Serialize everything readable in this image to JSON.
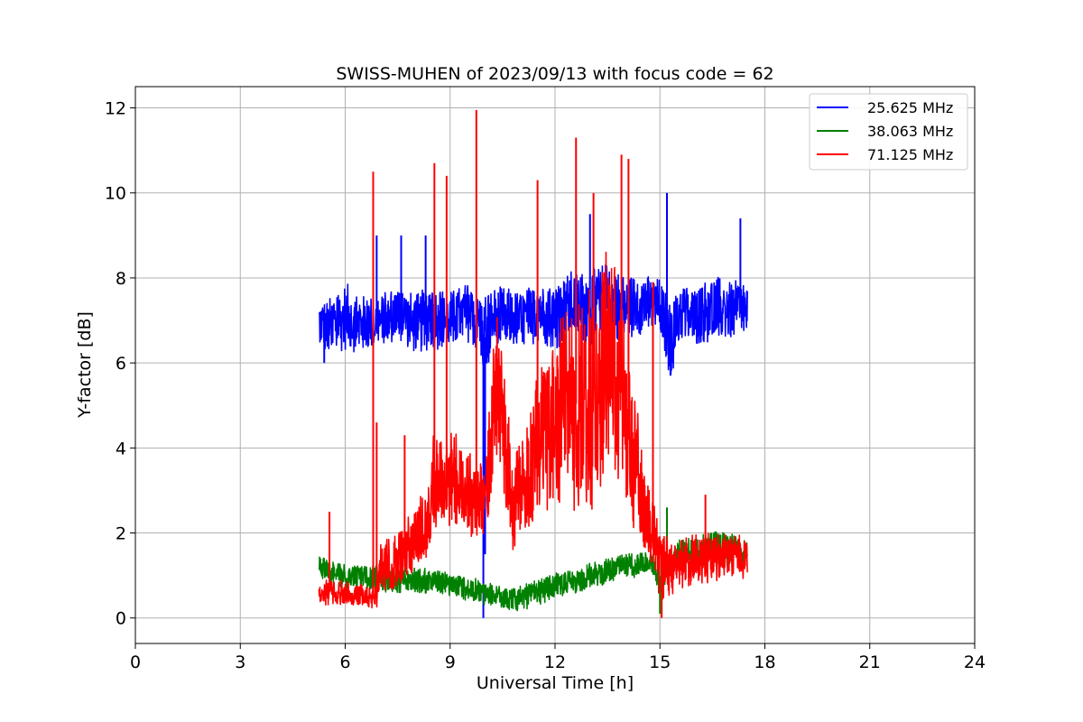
{
  "chart_data": {
    "type": "line",
    "title": "SWISS-MUHEN of 2023/09/13 with focus code = 62",
    "xlabel": "Universal Time [h]",
    "ylabel": "Y-factor [dB]",
    "xlim": [
      0,
      24
    ],
    "ylim": [
      -0.6,
      12.5
    ],
    "xticks": [
      0,
      3,
      6,
      9,
      12,
      15,
      18,
      21,
      24
    ],
    "yticks": [
      0,
      2,
      4,
      6,
      8,
      10,
      12
    ],
    "grid": true,
    "legend_position": "top-right",
    "series": [
      {
        "name": "25.625 MHz",
        "color": "#0000ff",
        "x": [
          5.25,
          5.5,
          6.0,
          6.5,
          7.0,
          7.5,
          8.0,
          8.5,
          9.0,
          9.5,
          9.8,
          10.0,
          10.2,
          10.5,
          11.0,
          11.5,
          12.0,
          12.5,
          13.0,
          13.5,
          14.0,
          14.5,
          15.0,
          15.3,
          15.6,
          16.0,
          16.5,
          17.0,
          17.5
        ],
        "y": [
          7.0,
          6.8,
          7.1,
          6.9,
          7.0,
          7.2,
          6.9,
          7.1,
          7.0,
          7.2,
          6.9,
          6.6,
          7.0,
          7.1,
          7.0,
          7.2,
          7.1,
          7.4,
          7.3,
          7.5,
          7.3,
          7.4,
          7.3,
          6.5,
          7.2,
          7.1,
          7.3,
          7.2,
          7.3
        ],
        "amplitude": [
          0.6,
          0.7,
          0.8,
          0.7,
          0.6,
          0.7,
          0.7,
          0.8,
          0.7,
          0.7,
          0.7,
          1.2,
          0.8,
          0.7,
          0.7,
          0.7,
          0.8,
          0.8,
          0.9,
          0.9,
          0.8,
          0.7,
          0.7,
          0.9,
          0.7,
          0.7,
          0.8,
          0.7,
          0.7
        ],
        "spikes": [
          [
            5.4,
            6.0
          ],
          [
            6.9,
            9.0
          ],
          [
            9.95,
            0.0
          ],
          [
            10.0,
            1.5
          ],
          [
            13.0,
            9.5
          ],
          [
            15.2,
            10.0
          ],
          [
            15.3,
            5.7
          ],
          [
            17.3,
            9.4
          ],
          [
            7.6,
            9.0
          ],
          [
            8.3,
            9.0
          ]
        ]
      },
      {
        "name": "38.063 MHz",
        "color": "#008000",
        "x": [
          5.25,
          5.5,
          6.0,
          6.5,
          7.0,
          7.5,
          8.0,
          8.5,
          9.0,
          9.5,
          10.0,
          10.5,
          11.0,
          11.5,
          12.0,
          12.5,
          13.0,
          13.5,
          14.0,
          14.5,
          14.75,
          15.0,
          15.3,
          15.6,
          16.0,
          16.5,
          17.0,
          17.5
        ],
        "y": [
          1.3,
          1.1,
          1.0,
          1.0,
          0.9,
          0.9,
          0.9,
          0.85,
          0.8,
          0.7,
          0.55,
          0.5,
          0.45,
          0.6,
          0.75,
          0.85,
          1.0,
          1.1,
          1.2,
          1.3,
          1.4,
          0.9,
          1.3,
          1.5,
          1.5,
          1.7,
          1.6,
          1.5
        ],
        "amplitude": [
          0.3,
          0.3,
          0.3,
          0.3,
          0.3,
          0.3,
          0.3,
          0.3,
          0.3,
          0.3,
          0.3,
          0.3,
          0.3,
          0.3,
          0.3,
          0.3,
          0.3,
          0.3,
          0.3,
          0.3,
          0.3,
          0.4,
          0.3,
          0.4,
          0.4,
          0.4,
          0.4,
          0.3
        ],
        "spikes": [
          [
            15.2,
            2.6
          ],
          [
            15.0,
            0.1
          ]
        ]
      },
      {
        "name": "71.125 MHz",
        "color": "#ff0000",
        "x": [
          5.25,
          5.5,
          6.0,
          6.5,
          6.9,
          7.0,
          7.5,
          8.0,
          8.4,
          8.5,
          9.0,
          9.5,
          10.0,
          10.3,
          10.5,
          10.8,
          11.0,
          11.5,
          12.0,
          12.5,
          13.0,
          13.5,
          14.0,
          14.3,
          14.6,
          14.8,
          15.0,
          15.3,
          15.6,
          16.0,
          16.5,
          17.0,
          17.5
        ],
        "y": [
          0.6,
          0.6,
          0.6,
          0.5,
          0.45,
          1.2,
          1.4,
          1.8,
          2.4,
          3.2,
          3.3,
          3.0,
          2.6,
          5.5,
          4.5,
          2.6,
          3.0,
          4.0,
          4.6,
          5.0,
          5.2,
          6.0,
          5.5,
          3.5,
          2.5,
          2.0,
          1.2,
          1.2,
          1.3,
          1.4,
          1.4,
          1.5,
          1.4
        ],
        "amplitude": [
          0.3,
          0.3,
          0.3,
          0.3,
          0.3,
          0.6,
          0.7,
          0.8,
          1.0,
          1.2,
          1.2,
          1.0,
          1.0,
          2.0,
          1.8,
          1.0,
          1.2,
          1.8,
          2.2,
          2.6,
          2.8,
          2.8,
          2.6,
          1.8,
          1.0,
          0.8,
          0.8,
          0.7,
          0.6,
          0.6,
          0.6,
          0.5,
          0.5
        ],
        "spikes": [
          [
            5.55,
            2.5
          ],
          [
            6.8,
            10.5
          ],
          [
            6.9,
            4.6
          ],
          [
            7.7,
            4.3
          ],
          [
            8.55,
            10.7
          ],
          [
            8.9,
            10.4
          ],
          [
            9.75,
            11.95
          ],
          [
            11.5,
            10.3
          ],
          [
            12.6,
            11.3
          ],
          [
            13.1,
            10.0
          ],
          [
            13.9,
            10.9
          ],
          [
            14.1,
            10.8
          ],
          [
            14.8,
            7.9
          ],
          [
            15.05,
            0.0
          ],
          [
            16.3,
            2.9
          ]
        ]
      }
    ]
  }
}
